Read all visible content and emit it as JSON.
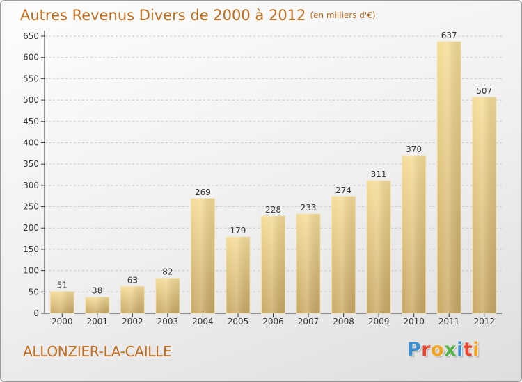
{
  "chart_data": {
    "type": "bar",
    "title": "Autres Revenus Divers de 2000 à 2012",
    "subtitle": "(en milliers d'€)",
    "categories": [
      "2000",
      "2001",
      "2002",
      "2003",
      "2004",
      "2005",
      "2006",
      "2007",
      "2008",
      "2009",
      "2010",
      "2011",
      "2012"
    ],
    "values": [
      51,
      38,
      63,
      82,
      269,
      179,
      228,
      233,
      274,
      311,
      370,
      637,
      507
    ],
    "ylim": [
      0,
      650
    ],
    "yticks": [
      "0",
      "50",
      "100",
      "150",
      "200",
      "250",
      "300",
      "350",
      "400",
      "450",
      "500",
      "550",
      "600",
      "650"
    ],
    "grid": "horizontal dashed",
    "bar_color": "#e8c87a",
    "xlabel": "",
    "ylabel": ""
  },
  "footer": {
    "city": "ALLONZIER-LA-CAILLE",
    "brand": "Proxiti",
    "brand_colors": [
      "#3a8fd0",
      "#e8432c",
      "#f3a21b",
      "#54b347",
      "#3a8fd0",
      "#e8432c",
      "#f3a21b"
    ]
  },
  "colors": {
    "title": "#c06c1c",
    "axis": "#333333",
    "grid": "#c8c8c8"
  }
}
